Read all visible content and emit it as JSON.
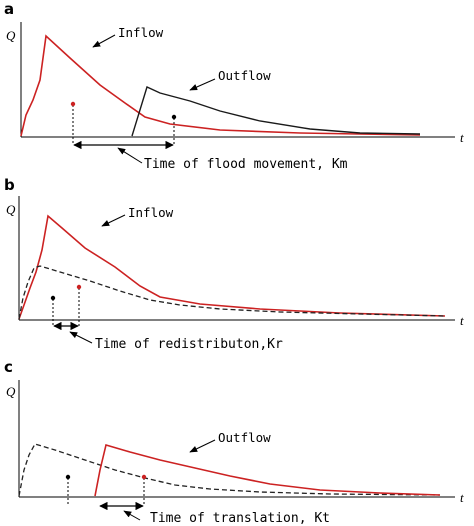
{
  "colors": {
    "inflow": "#cc2222",
    "outflow": "#1a1a1a",
    "axis": "#000000",
    "redistributed": "#222222"
  },
  "panels": {
    "a": {
      "letter": "a",
      "y_symbol": "Q",
      "x_symbol": "t",
      "labels": {
        "inflow": "Inflow",
        "outflow": "Outflow"
      },
      "span_label": "Time of flood movement, Km"
    },
    "b": {
      "letter": "b",
      "y_symbol": "Q",
      "x_symbol": "t",
      "labels": {
        "inflow": "Inflow"
      },
      "span_label": "Time of redistributon,Kr"
    },
    "c": {
      "letter": "c",
      "y_symbol": "Q",
      "x_symbol": "t",
      "labels": {
        "outflow": "Outflow"
      },
      "span_label": "Time of translation, Kt"
    }
  }
}
